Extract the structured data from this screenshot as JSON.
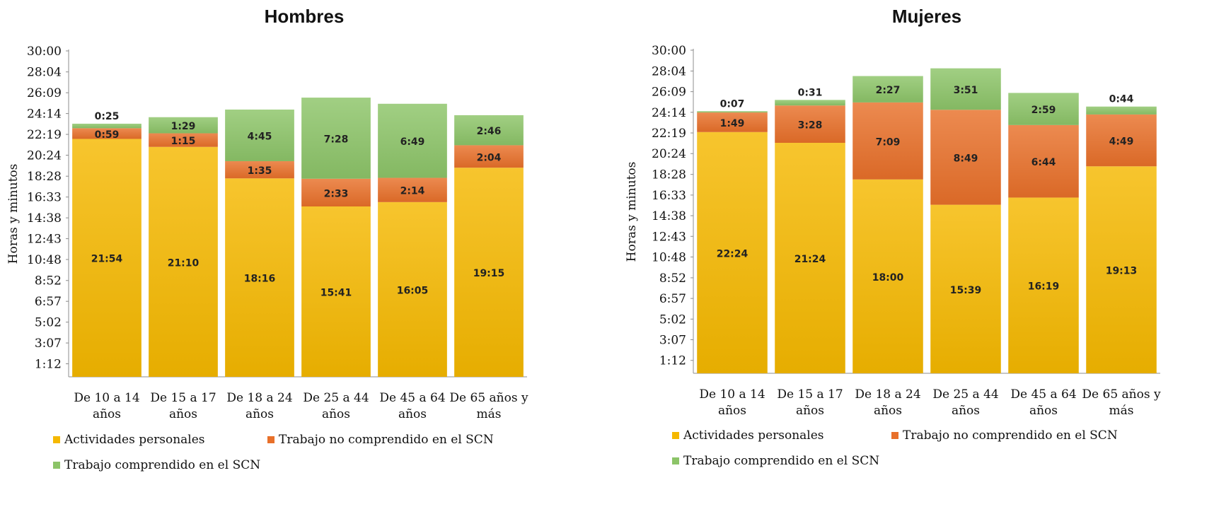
{
  "chart_data": [
    {
      "type": "bar",
      "stacked": true,
      "title": "Hombres",
      "ylabel": "Horas y minutos",
      "xlabel": "",
      "categories": [
        [
          "De 10 a 14",
          "años"
        ],
        [
          "De 15 a 17",
          "años"
        ],
        [
          "De 18 a 24",
          "años"
        ],
        [
          "De 25 a 44",
          "años"
        ],
        [
          "De 45 a 64",
          "años"
        ],
        [
          "De 65 años y",
          "más"
        ]
      ],
      "y_ticks": [
        "1:12",
        "3:07",
        "5:02",
        "6:57",
        "8:52",
        "10:48",
        "12:43",
        "14:38",
        "16:33",
        "18:28",
        "20:24",
        "22:19",
        "24:14",
        "26:09",
        "28:04",
        "30:00"
      ],
      "ylim": [
        "0:00",
        "30:00"
      ],
      "series": [
        {
          "name": "Actividades personales",
          "color": "#f5b800",
          "values": [
            "21:54",
            "21:10",
            "18:16",
            "15:41",
            "16:05",
            "19:15"
          ]
        },
        {
          "name": "Trabajo no comprendido en el SCN",
          "color": "#e8702a",
          "values": [
            "0:59",
            "1:15",
            "1:35",
            "2:33",
            "2:14",
            "2:04"
          ]
        },
        {
          "name": "Trabajo comprendido en el SCN",
          "color": "#8cc468",
          "values": [
            "0:25",
            "1:29",
            "4:45",
            "7:28",
            "6:49",
            "2:46"
          ]
        }
      ],
      "legend": "bottom"
    },
    {
      "type": "bar",
      "stacked": true,
      "title": "Mujeres",
      "ylabel": "Horas y minutos",
      "xlabel": "",
      "categories": [
        [
          "De 10 a 14",
          "años"
        ],
        [
          "De 15 a 17",
          "años"
        ],
        [
          "De 18 a 24",
          "años"
        ],
        [
          "De 25 a 44",
          "años"
        ],
        [
          "De 45 a 64",
          "años"
        ],
        [
          "De 65 años y",
          "más"
        ]
      ],
      "y_ticks": [
        "1:12",
        "3:07",
        "5:02",
        "6:57",
        "8:52",
        "10:48",
        "12:43",
        "14:38",
        "16:33",
        "18:28",
        "20:24",
        "22:19",
        "24:14",
        "26:09",
        "28:04",
        "30:00"
      ],
      "ylim": [
        "0:00",
        "30:00"
      ],
      "series": [
        {
          "name": "Actividades personales",
          "color": "#f5b800",
          "values": [
            "22:24",
            "21:24",
            "18:00",
            "15:39",
            "16:19",
            "19:13"
          ]
        },
        {
          "name": "Trabajo no comprendido en el SCN",
          "color": "#e8702a",
          "values": [
            "1:49",
            "3:28",
            "7:09",
            "8:49",
            "6:44",
            "4:49"
          ]
        },
        {
          "name": "Trabajo comprendido en el SCN",
          "color": "#8cc468",
          "values": [
            "0:07",
            "0:31",
            "2:27",
            "3:51",
            "2:59",
            "0:44"
          ]
        }
      ],
      "legend": "bottom"
    }
  ]
}
